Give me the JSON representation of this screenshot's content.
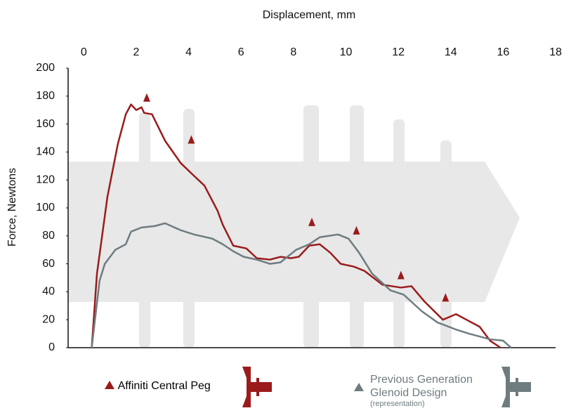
{
  "chart_data": {
    "type": "line",
    "title": "Displacement, mm",
    "y_label": "Force, Newtons",
    "xlim": [
      -0.6,
      18
    ],
    "xticks": [
      0,
      2,
      4,
      6,
      8,
      10,
      12,
      14,
      16,
      18
    ],
    "ylim": [
      0,
      200
    ],
    "yticks": [
      0,
      20,
      40,
      60,
      80,
      100,
      120,
      140,
      160,
      180,
      200
    ],
    "series": [
      {
        "name": "Affiniti Central Peg",
        "color": "#9b1b1b",
        "x": [
          0.3,
          0.5,
          0.9,
          1.3,
          1.6,
          1.8,
          2.0,
          2.2,
          2.3,
          2.6,
          3.1,
          3.7,
          4.2,
          4.6,
          5.1,
          5.3,
          5.7,
          6.2,
          6.6,
          7.1,
          7.5,
          7.9,
          8.2,
          8.6,
          9.0,
          9.4,
          9.8,
          10.3,
          10.7,
          11.4,
          12.1,
          12.5,
          13.0,
          13.7,
          14.2,
          14.6,
          15.1,
          15.5,
          15.9
        ],
        "values": [
          0,
          53,
          108,
          146,
          167,
          174,
          170,
          172,
          168,
          167,
          148,
          132,
          123,
          116,
          98,
          88,
          73,
          71,
          64,
          63,
          65,
          64,
          65,
          73,
          74,
          68,
          60,
          58,
          55,
          45,
          43,
          44,
          33,
          20,
          24,
          20,
          15,
          5,
          0
        ],
        "markers": {
          "x": [
            2.4,
            4.1,
            8.7,
            10.4,
            12.1,
            13.8
          ],
          "values": [
            179,
            149,
            90,
            84,
            52,
            36
          ]
        }
      },
      {
        "name": "Previous Generation Glenoid Design",
        "note": "(representation)",
        "color": "#6e7c80",
        "x": [
          0.3,
          0.6,
          0.8,
          1.2,
          1.6,
          1.8,
          2.2,
          2.7,
          3.1,
          3.7,
          4.2,
          4.9,
          5.3,
          5.7,
          6.1,
          6.6,
          7.1,
          7.5,
          8.1,
          8.6,
          9.0,
          9.7,
          10.1,
          10.5,
          11.0,
          11.7,
          12.2,
          12.9,
          13.5,
          14.2,
          14.7,
          15.5,
          16.0,
          16.3
        ],
        "values": [
          0,
          48,
          60,
          70,
          74,
          83,
          86,
          87,
          89,
          84,
          81,
          78,
          74,
          69,
          65,
          63,
          60,
          61,
          70,
          74,
          79,
          81,
          78,
          68,
          53,
          41,
          38,
          26,
          18,
          13,
          10,
          6,
          5,
          0
        ]
      }
    ]
  }
}
